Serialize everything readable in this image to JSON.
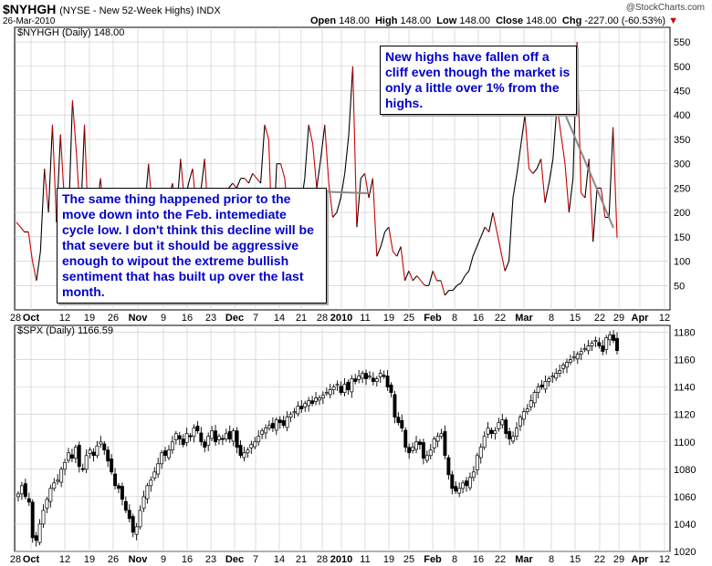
{
  "header": {
    "symbol": "$NYHGH",
    "subtitle": "(NYSE - New 52-Week Highs) INDX",
    "date": "26-Mar-2010",
    "brand": "@StockCharts.com",
    "open_label": "Open",
    "open": "148.00",
    "high_label": "High",
    "high": "148.00",
    "low_label": "Low",
    "low": "148.00",
    "close_label": "Close",
    "close": "148.00",
    "chg_label": "Chg",
    "chg": "-227.00 (-60.53%)"
  },
  "annotations": {
    "top": "New highs have fallen off a cliff even though the market is only a little over 1% from the highs.",
    "middle": "The same thing happened prior to the move down into the Feb. intemediate cycle low. I don't think this decline will be that severe but it should be aggressive enough to wipout the extreme bullish sentiment that has built up over the last month."
  },
  "colors": {
    "up": "#000000",
    "down": "#cc0000",
    "annotation": "#0000cc",
    "grid": "#c8c8c8"
  },
  "chart_data": [
    {
      "type": "line",
      "panel_label": "$NYHGH (Daily) 148.00",
      "ylim": [
        0,
        580
      ],
      "y_ticks": [
        50,
        100,
        150,
        200,
        250,
        300,
        350,
        400,
        450,
        500,
        550
      ],
      "x_tick_labels": [
        "28",
        "Oct",
        "12",
        "19",
        "26",
        "Nov",
        "9",
        "16",
        "23",
        "Dec",
        "7",
        "14",
        "21",
        "28",
        "2010",
        "11",
        "19",
        "25",
        "Feb",
        "8",
        "16",
        "22",
        "Mar",
        "8",
        "15",
        "22",
        "29",
        "Apr",
        "12"
      ],
      "values": [
        180,
        170,
        160,
        160,
        100,
        60,
        120,
        290,
        200,
        380,
        180,
        360,
        220,
        180,
        430,
        320,
        180,
        380,
        160,
        210,
        200,
        270,
        190,
        220,
        200,
        240,
        210,
        230,
        170,
        160,
        200,
        240,
        200,
        300,
        200,
        240,
        240,
        200,
        230,
        260,
        200,
        310,
        220,
        260,
        290,
        200,
        240,
        310,
        180,
        180,
        240,
        230,
        240,
        250,
        260,
        250,
        270,
        270,
        260,
        280,
        270,
        260,
        380,
        350,
        120,
        300,
        300,
        270,
        180,
        190,
        200,
        210,
        270,
        380,
        340,
        250,
        310,
        380,
        260,
        190,
        200,
        230,
        280,
        360,
        500,
        170,
        270,
        280,
        230,
        270,
        110,
        130,
        160,
        170,
        120,
        110,
        130,
        60,
        80,
        60,
        70,
        60,
        50,
        50,
        80,
        60,
        60,
        30,
        40,
        40,
        50,
        55,
        70,
        80,
        110,
        130,
        150,
        170,
        160,
        200,
        160,
        120,
        80,
        100,
        230,
        280,
        340,
        400,
        290,
        280,
        290,
        310,
        220,
        260,
        310,
        420,
        360,
        300,
        200,
        270,
        550,
        240,
        230,
        310,
        140,
        250,
        250,
        190,
        190,
        375,
        148
      ]
    },
    {
      "type": "candlestick",
      "panel_label": "$SPX (Daily) 1166.59",
      "ylim": [
        1020,
        1185
      ],
      "y_ticks": [
        1020,
        1040,
        1060,
        1080,
        1100,
        1120,
        1140,
        1160,
        1180
      ],
      "x_tick_labels": [
        "28",
        "Oct",
        "12",
        "19",
        "26",
        "Nov",
        "9",
        "16",
        "23",
        "Dec",
        "7",
        "14",
        "21",
        "28",
        "2010",
        "11",
        "19",
        "25",
        "Feb",
        "8",
        "16",
        "22",
        "Mar",
        "8",
        "15",
        "22",
        "29",
        "Apr",
        "12"
      ],
      "closes": [
        1062,
        1068,
        1060,
        1056,
        1030,
        1028,
        1040,
        1050,
        1058,
        1066,
        1070,
        1072,
        1080,
        1085,
        1092,
        1088,
        1096,
        1082,
        1080,
        1090,
        1094,
        1090,
        1097,
        1100,
        1094,
        1086,
        1078,
        1068,
        1066,
        1058,
        1050,
        1044,
        1034,
        1038,
        1050,
        1060,
        1068,
        1072,
        1078,
        1084,
        1092,
        1090,
        1094,
        1100,
        1106,
        1102,
        1098,
        1106,
        1104,
        1110,
        1108,
        1100,
        1096,
        1104,
        1108,
        1100,
        1104,
        1102,
        1106,
        1102,
        1108,
        1096,
        1090,
        1092,
        1094,
        1098,
        1100,
        1104,
        1108,
        1110,
        1112,
        1110,
        1116,
        1114,
        1112,
        1118,
        1120,
        1122,
        1126,
        1124,
        1128,
        1130,
        1128,
        1132,
        1132,
        1134,
        1136,
        1138,
        1140,
        1142,
        1136,
        1142,
        1138,
        1146,
        1144,
        1148,
        1150,
        1146,
        1148,
        1144,
        1146,
        1150,
        1148,
        1140,
        1136,
        1118,
        1114,
        1110,
        1096,
        1092,
        1096,
        1100,
        1098,
        1088,
        1090,
        1094,
        1102,
        1104,
        1106,
        1090,
        1076,
        1066,
        1064,
        1066,
        1070,
        1068,
        1074,
        1078,
        1090,
        1096,
        1104,
        1110,
        1106,
        1108,
        1114,
        1116,
        1106,
        1102,
        1104,
        1110,
        1118,
        1122,
        1124,
        1130,
        1136,
        1140,
        1140,
        1144,
        1146,
        1148,
        1150,
        1152,
        1156,
        1158,
        1160,
        1162,
        1164,
        1166,
        1168,
        1170,
        1172,
        1174,
        1170,
        1166,
        1176,
        1178,
        1174,
        1166.59
      ]
    }
  ]
}
